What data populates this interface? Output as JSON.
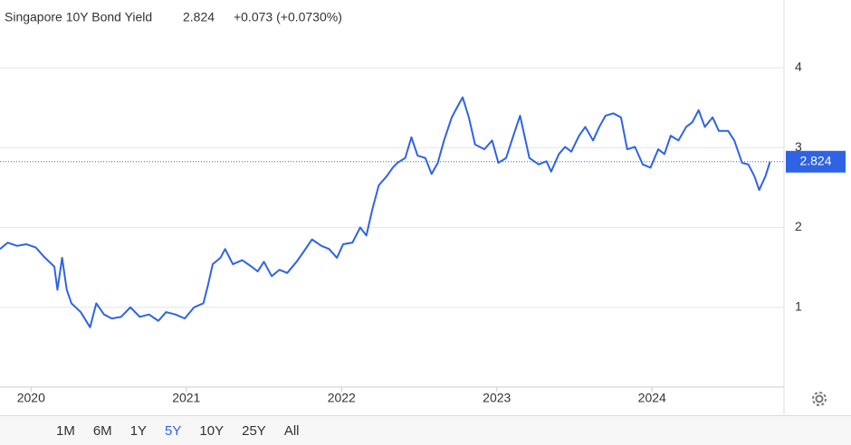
{
  "chart_data": {
    "type": "line",
    "title": "Singapore 10Y Bond Yield",
    "change": "+0.073 (+0.0730%)",
    "x": [
      2019.8,
      2019.85,
      2019.91,
      2019.97,
      2020.03,
      2020.09,
      2020.15,
      2020.17,
      2020.2,
      2020.23,
      2020.26,
      2020.32,
      2020.38,
      2020.42,
      2020.47,
      2020.52,
      2020.58,
      2020.64,
      2020.7,
      2020.76,
      2020.82,
      2020.87,
      2020.93,
      2020.99,
      2021.05,
      2021.11,
      2021.14,
      2021.17,
      2021.22,
      2021.25,
      2021.3,
      2021.36,
      2021.42,
      2021.46,
      2021.5,
      2021.55,
      2021.6,
      2021.65,
      2021.71,
      2021.75,
      2021.81,
      2021.87,
      2021.92,
      2021.97,
      2022.01,
      2022.07,
      2022.12,
      2022.16,
      2022.2,
      2022.24,
      2022.29,
      2022.33,
      2022.36,
      2022.41,
      2022.45,
      2022.49,
      2022.54,
      2022.58,
      2022.62,
      2022.66,
      2022.71,
      2022.74,
      2022.78,
      2022.82,
      2022.86,
      2022.92,
      2022.97,
      2023.01,
      2023.06,
      2023.11,
      2023.15,
      2023.21,
      2023.27,
      2023.32,
      2023.35,
      2023.4,
      2023.44,
      2023.48,
      2023.53,
      2023.57,
      2023.62,
      2023.66,
      2023.7,
      2023.75,
      2023.8,
      2023.84,
      2023.89,
      2023.94,
      2023.99,
      2024.04,
      2024.08,
      2024.12,
      2024.17,
      2024.22,
      2024.26,
      2024.3,
      2024.34,
      2024.39,
      2024.43,
      2024.49,
      2024.53,
      2024.58,
      2024.62,
      2024.66,
      2024.69,
      2024.73,
      2024.76
    ],
    "series": [
      {
        "color": "#2f63e6",
        "values": [
          1.73,
          1.81,
          1.77,
          1.79,
          1.75,
          1.62,
          1.51,
          1.22,
          1.62,
          1.22,
          1.05,
          0.94,
          0.75,
          1.05,
          0.91,
          0.86,
          0.88,
          1.0,
          0.88,
          0.91,
          0.83,
          0.94,
          0.91,
          0.86,
          1.0,
          1.05,
          1.28,
          1.54,
          1.62,
          1.73,
          1.54,
          1.59,
          1.51,
          1.45,
          1.57,
          1.39,
          1.47,
          1.43,
          1.57,
          1.68,
          1.85,
          1.77,
          1.73,
          1.62,
          1.79,
          1.81,
          2.0,
          1.9,
          2.24,
          2.53,
          2.64,
          2.75,
          2.81,
          2.87,
          3.13,
          2.9,
          2.87,
          2.67,
          2.81,
          3.09,
          3.38,
          3.49,
          3.63,
          3.38,
          3.04,
          2.98,
          3.09,
          2.81,
          2.87,
          3.17,
          3.4,
          2.87,
          2.79,
          2.83,
          2.7,
          2.92,
          3.01,
          2.95,
          3.15,
          3.26,
          3.09,
          3.26,
          3.4,
          3.43,
          3.38,
          2.98,
          3.01,
          2.79,
          2.75,
          2.98,
          2.92,
          3.15,
          3.09,
          3.26,
          3.32,
          3.47,
          3.26,
          3.38,
          3.21,
          3.21,
          3.09,
          2.81,
          2.79,
          2.64,
          2.47,
          2.64,
          2.824
        ]
      }
    ],
    "xlim": [
      2019.8,
      2024.85
    ],
    "xticks": [
      2020,
      2021,
      2022,
      2023,
      2024
    ],
    "ylim": [
      0,
      4.85
    ],
    "yticks": [
      1,
      2,
      3,
      4
    ],
    "grid": true,
    "change_color": "#2db52d",
    "ranges": [
      "1M",
      "6M",
      "1Y",
      "5Y",
      "10Y",
      "25Y",
      "All"
    ],
    "active_range": "5Y"
  }
}
